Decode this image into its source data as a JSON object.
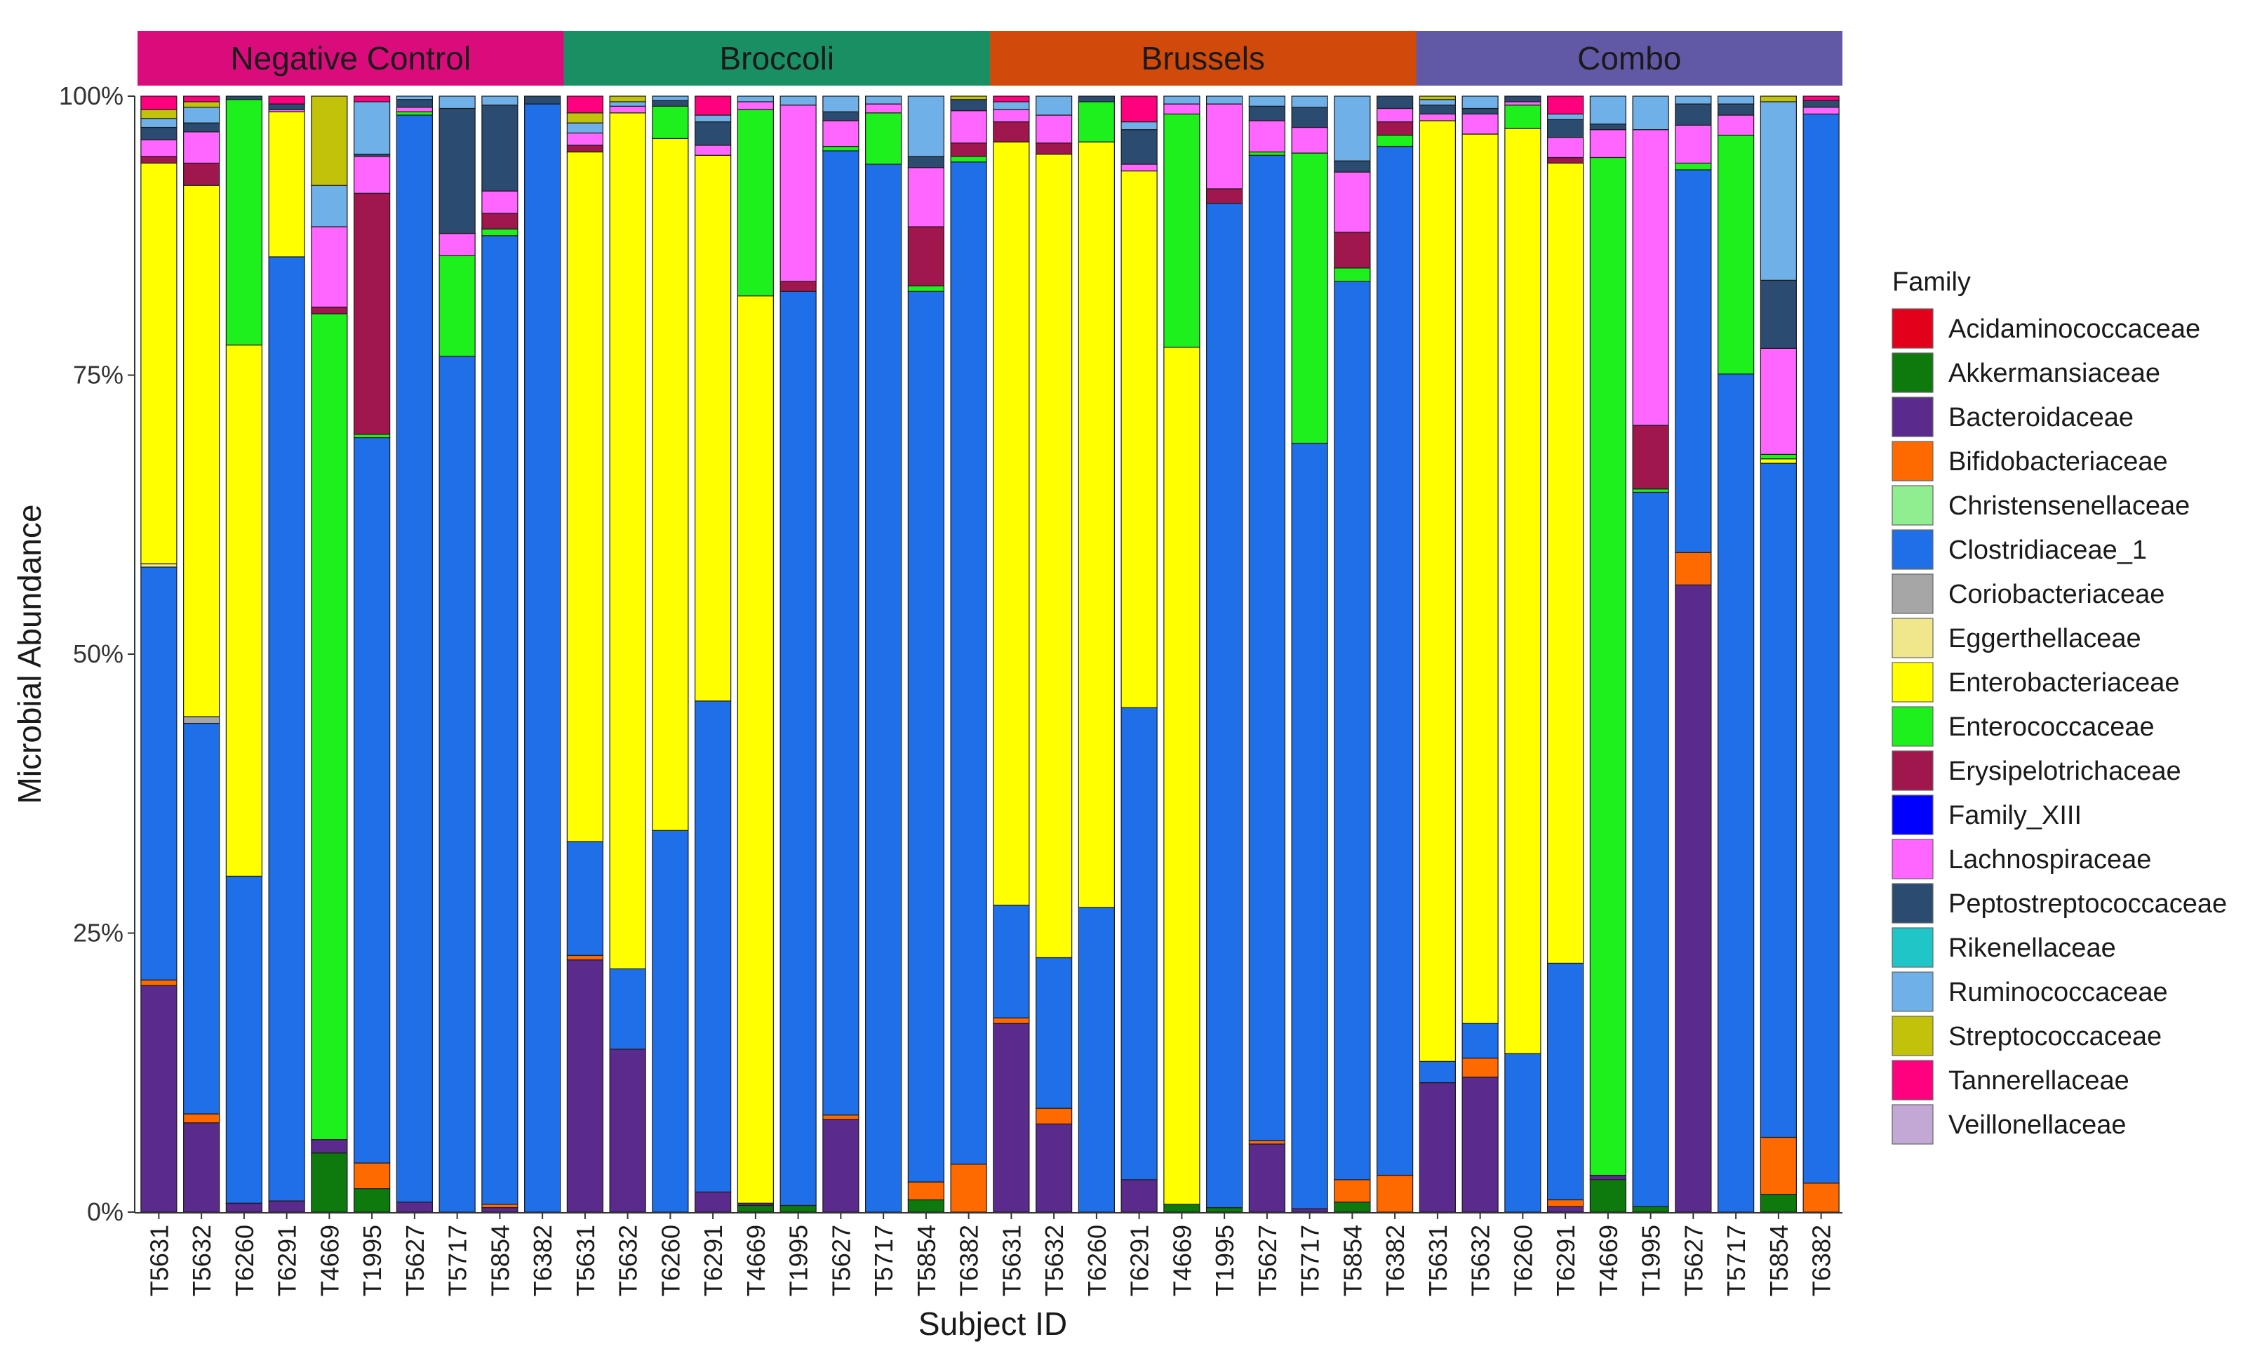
{
  "chart_data": {
    "type": "bar",
    "stacked": true,
    "normalized": true,
    "xlabel": "Subject ID",
    "ylabel": "Microbial Abundance",
    "ylim": [
      0,
      100
    ],
    "y_ticks": [
      "0%",
      "25%",
      "50%",
      "75%",
      "100%"
    ],
    "legend_title": "Family",
    "legend_position": "right",
    "families": [
      {
        "name": "Acidaminococcaceae",
        "color": "#E3001B"
      },
      {
        "name": "Akkermansiaceae",
        "color": "#0E7A0E"
      },
      {
        "name": "Bacteroidaceae",
        "color": "#5A2A8C"
      },
      {
        "name": "Bifidobacteriaceae",
        "color": "#FF6A00"
      },
      {
        "name": "Christensenellaceae",
        "color": "#90EE90"
      },
      {
        "name": "Clostridiaceae_1",
        "color": "#1F6FE8"
      },
      {
        "name": "Coriobacteriaceae",
        "color": "#A6A6A6"
      },
      {
        "name": "Eggerthellaceae",
        "color": "#F0E68C"
      },
      {
        "name": "Enterobacteriaceae",
        "color": "#FFFF00"
      },
      {
        "name": "Enterococcaceae",
        "color": "#1EF01E"
      },
      {
        "name": "Erysipelotrichaceae",
        "color": "#A0174D"
      },
      {
        "name": "Family_XIII",
        "color": "#0000FF"
      },
      {
        "name": "Lachnospiraceae",
        "color": "#FF66FF"
      },
      {
        "name": "Peptostreptococcaceae",
        "color": "#2B4C70"
      },
      {
        "name": "Rikenellaceae",
        "color": "#20C5C8"
      },
      {
        "name": "Ruminococcaceae",
        "color": "#6FB0E8"
      },
      {
        "name": "Streptococcaceae",
        "color": "#C2C20A"
      },
      {
        "name": "Tannerellaceae",
        "color": "#FF007F"
      },
      {
        "name": "Veillonellaceae",
        "color": "#C3A8D6"
      }
    ],
    "panels": [
      {
        "label": "Negative Control",
        "color": "#DA0C7C",
        "subjects": [
          {
            "id": "T5631",
            "values": {
              "Bacteroidaceae": 20.3,
              "Bifidobacteriaceae": 0.5,
              "Clostridiaceae_1": 37,
              "Enterobacteriaceae": 35.9,
              "Erysipelotrichaceae": 0.6,
              "Lachnospiraceae": 1.5,
              "Peptostreptococcaceae": 1.1,
              "Ruminococcaceae": 0.8,
              "Streptococcaceae": 0.8,
              "Eggerthellaceae": 0.3,
              "Tannerellaceae": 1.2
            }
          },
          {
            "id": "T5632",
            "values": {
              "Bacteroidaceae": 8,
              "Bifidobacteriaceae": 0.8,
              "Clostridiaceae_1": 35,
              "Enterobacteriaceae": 47.6,
              "Erysipelotrichaceae": 2,
              "Lachnospiraceae": 2.8,
              "Peptostreptococcaceae": 0.8,
              "Ruminococcaceae": 1.4,
              "Coriobacteriaceae": 0.6,
              "Streptococcaceae": 0.5,
              "Tannerellaceae": 0.5
            }
          },
          {
            "id": "T6260",
            "values": {
              "Bacteroidaceae": 0.8,
              "Clostridiaceae_1": 29.3,
              "Enterobacteriaceae": 47.6,
              "Enterococcaceae": 22,
              "Peptostreptococcaceae": 0.3
            }
          },
          {
            "id": "T6291",
            "values": {
              "Bacteroidaceae": 1,
              "Clostridiaceae_1": 84.6,
              "Enterobacteriaceae": 13,
              "Peptostreptococcaceae": 0.5,
              "Lachnospiraceae": 0.2,
              "Tannerellaceae": 0.7
            }
          },
          {
            "id": "T4669",
            "values": {
              "Akkermansiaceae": 5.3,
              "Bacteroidaceae": 1.2,
              "Enterococcaceae": 74,
              "Erysipelotrichaceae": 0.6,
              "Lachnospiraceae": 7.2,
              "Ruminococcaceae": 3.7,
              "Streptococcaceae": 8
            }
          },
          {
            "id": "T1995",
            "values": {
              "Akkermansiaceae": 2.1,
              "Bifidobacteriaceae": 2.3,
              "Clostridiaceae_1": 65,
              "Enterococcaceae": 0.3,
              "Erysipelotrichaceae": 21.6,
              "Lachnospiraceae": 3.3,
              "Peptostreptococcaceae": 0.2,
              "Ruminococcaceae": 4.7,
              "Tannerellaceae": 0.5
            }
          },
          {
            "id": "T5627",
            "values": {
              "Bacteroidaceae": 0.9,
              "Clostridiaceae_1": 97.4,
              "Enterococcaceae": 0.3,
              "Peptostreptococcaceae": 0.7,
              "Lachnospiraceae": 0.4,
              "Ruminococcaceae": 0.3
            }
          },
          {
            "id": "T5717",
            "values": {
              "Clostridiaceae_1": 76.7,
              "Enterococcaceae": 9,
              "Lachnospiraceae": 2,
              "Peptostreptococcaceae": 11.2,
              "Ruminococcaceae": 1.1
            }
          },
          {
            "id": "T5854",
            "values": {
              "Bacteroidaceae": 0.4,
              "Bifidobacteriaceae": 0.3,
              "Clostridiaceae_1": 86.8,
              "Enterococcaceae": 0.6,
              "Erysipelotrichaceae": 1.4,
              "Lachnospiraceae": 2,
              "Peptostreptococcaceae": 7.7,
              "Ruminococcaceae": 0.8
            }
          },
          {
            "id": "T6382",
            "values": {
              "Clostridiaceae_1": 99.3,
              "Peptostreptococcaceae": 0.7
            }
          }
        ]
      },
      {
        "label": "Broccoli",
        "color": "#1B8F64",
        "subjects": [
          {
            "id": "T5631",
            "values": {
              "Bacteroidaceae": 22.6,
              "Bifidobacteriaceae": 0.4,
              "Clostridiaceae_1": 10.2,
              "Enterobacteriaceae": 61.8,
              "Erysipelotrichaceae": 0.6,
              "Lachnospiraceae": 1.1,
              "Ruminococcaceae": 0.9,
              "Streptococcaceae": 0.9,
              "Tannerellaceae": 1.5
            }
          },
          {
            "id": "T5632",
            "values": {
              "Bacteroidaceae": 14.6,
              "Clostridiaceae_1": 7.2,
              "Enterobacteriaceae": 76.7,
              "Lachnospiraceae": 0.6,
              "Ruminococcaceae": 0.4,
              "Streptococcaceae": 0.5
            }
          },
          {
            "id": "T6260",
            "values": {
              "Clostridiaceae_1": 34.2,
              "Enterobacteriaceae": 62,
              "Enterococcaceae": 2.9,
              "Peptostreptococcaceae": 0.5,
              "Ruminococcaceae": 0.4
            }
          },
          {
            "id": "T6291",
            "values": {
              "Bacteroidaceae": 1.8,
              "Clostridiaceae_1": 44,
              "Enterobacteriaceae": 48.9,
              "Lachnospiraceae": 0.9,
              "Peptostreptococcaceae": 2.1,
              "Ruminococcaceae": 0.6,
              "Tannerellaceae": 1.7
            }
          },
          {
            "id": "T4669",
            "values": {
              "Akkermansiaceae": 0.6,
              "Bacteroidaceae": 0.2,
              "Enterobacteriaceae": 81.3,
              "Enterococcaceae": 16.7,
              "Lachnospiraceae": 0.7,
              "Ruminococcaceae": 0.5
            }
          },
          {
            "id": "T1995",
            "values": {
              "Akkermansiaceae": 0.6,
              "Clostridiaceae_1": 81.9,
              "Erysipelotrichaceae": 0.9,
              "Lachnospiraceae": 15.8,
              "Ruminococcaceae": 0.8
            }
          },
          {
            "id": "T5627",
            "values": {
              "Bacteroidaceae": 8.3,
              "Bifidobacteriaceae": 0.4,
              "Clostridiaceae_1": 86.4,
              "Enterococcaceae": 0.4,
              "Lachnospiraceae": 2.3,
              "Peptostreptococcaceae": 0.8,
              "Ruminococcaceae": 1.4
            }
          },
          {
            "id": "T5717",
            "values": {
              "Clostridiaceae_1": 93.9,
              "Enterococcaceae": 4.6,
              "Lachnospiraceae": 0.8,
              "Ruminococcaceae": 0.7
            }
          },
          {
            "id": "T5854",
            "values": {
              "Akkermansiaceae": 1.1,
              "Bifidobacteriaceae": 1.6,
              "Clostridiaceae_1": 79.8,
              "Enterococcaceae": 0.5,
              "Erysipelotrichaceae": 5.3,
              "Lachnospiraceae": 5.3,
              "Peptostreptococcaceae": 1,
              "Ruminococcaceae": 5.4
            }
          },
          {
            "id": "T6382",
            "values": {
              "Bifidobacteriaceae": 4.3,
              "Clostridiaceae_1": 89.8,
              "Enterococcaceae": 0.5,
              "Erysipelotrichaceae": 1.2,
              "Lachnospiraceae": 2.9,
              "Peptostreptococcaceae": 1,
              "Streptococcaceae": 0.3
            }
          }
        ]
      },
      {
        "label": "Brussels",
        "color": "#D14A0B",
        "subjects": [
          {
            "id": "T5631",
            "values": {
              "Bacteroidaceae": 16.9,
              "Bifidobacteriaceae": 0.5,
              "Clostridiaceae_1": 10.1,
              "Enterobacteriaceae": 68.4,
              "Erysipelotrichaceae": 1.8,
              "Lachnospiraceae": 1.1,
              "Ruminococcaceae": 0.7,
              "Tannerellaceae": 0.5
            }
          },
          {
            "id": "T5632",
            "values": {
              "Bacteroidaceae": 7.9,
              "Bifidobacteriaceae": 1.4,
              "Clostridiaceae_1": 13.5,
              "Enterobacteriaceae": 72,
              "Erysipelotrichaceae": 1,
              "Lachnospiraceae": 2.5,
              "Ruminococcaceae": 1.7
            }
          },
          {
            "id": "T6260",
            "values": {
              "Clostridiaceae_1": 27.3,
              "Enterobacteriaceae": 68.6,
              "Enterococcaceae": 3.6,
              "Peptostreptococcaceae": 0.5
            }
          },
          {
            "id": "T6291",
            "values": {
              "Bacteroidaceae": 2.9,
              "Clostridiaceae_1": 42.3,
              "Enterobacteriaceae": 48.1,
              "Lachnospiraceae": 0.6,
              "Peptostreptococcaceae": 3.1,
              "Ruminococcaceae": 0.7,
              "Tannerellaceae": 2.3
            }
          },
          {
            "id": "T4669",
            "values": {
              "Akkermansiaceae": 0.7,
              "Enterobacteriaceae": 76.8,
              "Enterococcaceae": 20.9,
              "Lachnospiraceae": 0.9,
              "Ruminococcaceae": 0.7
            }
          },
          {
            "id": "T1995",
            "values": {
              "Akkermansiaceae": 0.4,
              "Clostridiaceae_1": 90,
              "Erysipelotrichaceae": 1.3,
              "Lachnospiraceae": 7.6,
              "Ruminococcaceae": 0.7
            }
          },
          {
            "id": "T5627",
            "values": {
              "Bacteroidaceae": 6.1,
              "Bifidobacteriaceae": 0.3,
              "Clostridiaceae_1": 88.3,
              "Enterococcaceae": 0.3,
              "Lachnospiraceae": 2.8,
              "Peptostreptococcaceae": 1.3,
              "Ruminococcaceae": 0.9
            }
          },
          {
            "id": "T5717",
            "values": {
              "Bacteroidaceae": 0.3,
              "Clostridiaceae_1": 68.6,
              "Enterococcaceae": 26,
              "Lachnospiraceae": 2.3,
              "Peptostreptococcaceae": 1.8,
              "Ruminococcaceae": 1
            }
          },
          {
            "id": "T5854",
            "values": {
              "Akkermansiaceae": 0.9,
              "Bifidobacteriaceae": 2,
              "Clostridiaceae_1": 80.5,
              "Enterococcaceae": 1.2,
              "Erysipelotrichaceae": 3.2,
              "Lachnospiraceae": 5.4,
              "Peptostreptococcaceae": 1,
              "Ruminococcaceae": 5.8
            }
          },
          {
            "id": "T6382",
            "values": {
              "Bifidobacteriaceae": 3.3,
              "Clostridiaceae_1": 92.2,
              "Enterococcaceae": 1,
              "Erysipelotrichaceae": 1.2,
              "Lachnospiraceae": 1.2,
              "Peptostreptococcaceae": 1.1
            }
          }
        ]
      },
      {
        "label": "Combo",
        "color": "#6159A6",
        "subjects": [
          {
            "id": "T5631",
            "values": {
              "Bacteroidaceae": 11.6,
              "Clostridiaceae_1": 1.9,
              "Enterobacteriaceae": 84.3,
              "Lachnospiraceae": 0.6,
              "Peptostreptococcaceae": 0.8,
              "Ruminococcaceae": 0.5,
              "Streptococcaceae": 0.3
            }
          },
          {
            "id": "T5632",
            "values": {
              "Bacteroidaceae": 12.1,
              "Bifidobacteriaceae": 1.7,
              "Clostridiaceae_1": 3.1,
              "Enterobacteriaceae": 79.7,
              "Lachnospiraceae": 1.8,
              "Ruminococcaceae": 1.1,
              "Peptostreptococcaceae": 0.5
            }
          },
          {
            "id": "T6260",
            "values": {
              "Clostridiaceae_1": 14.2,
              "Enterobacteriaceae": 82.9,
              "Enterococcaceae": 2.1,
              "Peptostreptococcaceae": 0.5,
              "Lachnospiraceae": 0.3
            }
          },
          {
            "id": "T6291",
            "values": {
              "Bacteroidaceae": 0.5,
              "Bifidobacteriaceae": 0.6,
              "Clostridiaceae_1": 21.2,
              "Enterobacteriaceae": 71.7,
              "Erysipelotrichaceae": 0.5,
              "Lachnospiraceae": 1.8,
              "Peptostreptococcaceae": 1.6,
              "Ruminococcaceae": 0.5,
              "Tannerellaceae": 1.6
            }
          },
          {
            "id": "T4669",
            "values": {
              "Akkermansiaceae": 2.9,
              "Bacteroidaceae": 0.4,
              "Enterococcaceae": 91.2,
              "Lachnospiraceae": 2.5,
              "Ruminococcaceae": 2.5,
              "Peptostreptococcaceae": 0.5
            }
          },
          {
            "id": "T1995",
            "values": {
              "Akkermansiaceae": 0.5,
              "Clostridiaceae_1": 64,
              "Enterococcaceae": 0.3,
              "Erysipelotrichaceae": 5.7,
              "Lachnospiraceae": 26.5,
              "Ruminococcaceae": 3
            }
          },
          {
            "id": "T5627",
            "values": {
              "Bacteroidaceae": 56.2,
              "Bifidobacteriaceae": 2.9,
              "Clostridiaceae_1": 34.3,
              "Enterococcaceae": 0.6,
              "Lachnospiraceae": 3.4,
              "Peptostreptococcaceae": 1.9,
              "Ruminococcaceae": 0.7
            }
          },
          {
            "id": "T5717",
            "values": {
              "Clostridiaceae_1": 75.1,
              "Enterococcaceae": 21.4,
              "Lachnospiraceae": 1.8,
              "Peptostreptococcaceae": 1,
              "Ruminococcaceae": 0.7
            }
          },
          {
            "id": "T5854",
            "values": {
              "Akkermansiaceae": 1.6,
              "Bifidobacteriaceae": 5.1,
              "Clostridiaceae_1": 60.4,
              "Enterobacteriaceae": 0.4,
              "Enterococcaceae": 0.4,
              "Lachnospiraceae": 9.5,
              "Peptostreptococcaceae": 6.1,
              "Ruminococcaceae": 16,
              "Streptococcaceae": 0.5
            }
          },
          {
            "id": "T6382",
            "values": {
              "Bifidobacteriaceae": 2.6,
              "Clostridiaceae_1": 95.8,
              "Lachnospiraceae": 0.6,
              "Peptostreptococcaceae": 0.6,
              "Tannerellaceae": 0.4
            }
          }
        ]
      }
    ]
  }
}
